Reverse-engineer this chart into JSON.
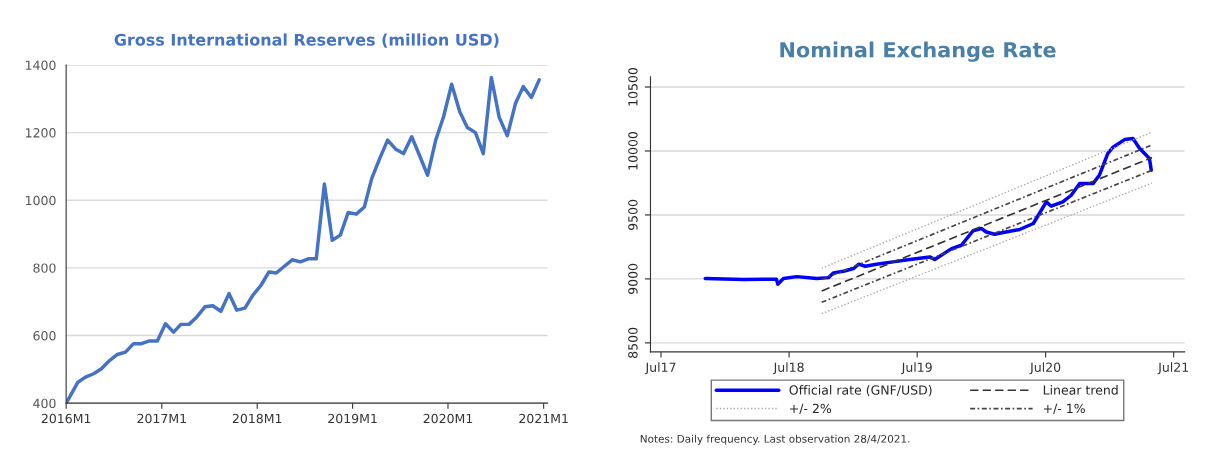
{
  "chart_data": [
    {
      "type": "line",
      "title": "Gross International Reserves (million USD)",
      "x": [
        "2016-01-01",
        "2016-02-15",
        "2016-03-15",
        "2016-04-15",
        "2016-05-15",
        "2016-06-15",
        "2016-07-15",
        "2016-08-15",
        "2016-09-15",
        "2016-10-15",
        "2016-11-15",
        "2016-12-15",
        "2017-01-15",
        "2017-02-15",
        "2017-03-15",
        "2017-04-15",
        "2017-05-15",
        "2017-06-15",
        "2017-07-15",
        "2017-08-15",
        "2017-09-15",
        "2017-10-15",
        "2017-11-15",
        "2017-12-15",
        "2018-01-15",
        "2018-02-15",
        "2018-03-15",
        "2018-04-15",
        "2018-05-15",
        "2018-06-15",
        "2018-07-15",
        "2018-08-15",
        "2018-09-15",
        "2018-10-15",
        "2018-11-15",
        "2018-12-15",
        "2019-01-15",
        "2019-02-15",
        "2019-03-15",
        "2019-04-15",
        "2019-05-15",
        "2019-06-15",
        "2019-07-15",
        "2019-08-15",
        "2019-09-15",
        "2019-10-15",
        "2019-11-15",
        "2019-12-15",
        "2020-01-15",
        "2020-02-15",
        "2020-03-15",
        "2020-04-15",
        "2020-05-15",
        "2020-06-15",
        "2020-07-15",
        "2020-08-15",
        "2020-09-15",
        "2020-10-15",
        "2020-11-15",
        "2020-12-15"
      ],
      "series": [
        {
          "color": "#4472c4",
          "values": [
            400,
            462,
            477,
            487,
            502,
            526,
            544,
            551,
            576,
            576,
            584,
            584,
            635,
            610,
            633,
            633,
            655,
            685,
            688,
            672,
            724,
            675,
            681,
            719,
            748,
            788,
            785,
            805,
            824,
            818,
            827,
            827,
            1048,
            882,
            897,
            964,
            959,
            980,
            1064,
            1124,
            1178,
            1151,
            1138,
            1188,
            1131,
            1074,
            1178,
            1247,
            1343,
            1262,
            1215,
            1200,
            1138,
            1363,
            1245,
            1191,
            1286,
            1336,
            1304,
            1356
          ]
        }
      ],
      "xlim": [
        "2016-01-01",
        "2021-01-16"
      ],
      "xticks": [
        {
          "value": "2016-01-01",
          "label": "2016M1"
        },
        {
          "value": "2017-01-01",
          "label": "2017M1"
        },
        {
          "value": "2018-01-01",
          "label": "2018M1"
        },
        {
          "value": "2019-01-01",
          "label": "2019M1"
        },
        {
          "value": "2020-01-01",
          "label": "2020M1"
        },
        {
          "value": "2021-01-01",
          "label": "2021M1"
        }
      ],
      "ylim": [
        400,
        1400
      ],
      "yticks": [
        400,
        600,
        800,
        1000,
        1200,
        1400
      ],
      "grid": "y",
      "legend": false
    },
    {
      "type": "line",
      "title": "Nominal Exchange Rate",
      "series": [
        {
          "name": "Official rate (GNF/USD)",
          "color": "#0000ff",
          "line_style": "solid",
          "x": [
            "2017-11-04",
            "2018-02-22",
            "2018-05-26",
            "2018-05-30",
            "2018-06-15",
            "2018-07-23",
            "2018-09-18",
            "2018-10-21",
            "2018-11-04",
            "2018-12-03",
            "2019-01-01",
            "2019-01-15",
            "2019-02-03",
            "2019-03-07",
            "2019-04-23",
            "2019-06-10",
            "2019-08-06",
            "2019-08-20",
            "2019-10-07",
            "2019-11-04",
            "2019-12-07",
            "2019-12-31",
            "2020-01-14",
            "2020-02-06",
            "2020-03-10",
            "2020-04-18",
            "2020-05-27",
            "2020-07-03",
            "2020-07-17",
            "2020-08-19",
            "2020-09-12",
            "2020-10-06",
            "2020-11-13",
            "2020-12-01",
            "2020-12-25",
            "2021-01-08",
            "2021-02-11",
            "2021-03-07",
            "2021-03-26",
            "2021-04-14",
            "2021-04-23",
            "2021-04-28"
          ],
          "values": [
            9003,
            8995,
            8998,
            8959,
            9003,
            9018,
            9003,
            9010,
            9047,
            9060,
            9081,
            9115,
            9099,
            9115,
            9133,
            9152,
            9172,
            9152,
            9237,
            9263,
            9375,
            9394,
            9367,
            9349,
            9367,
            9386,
            9433,
            9602,
            9568,
            9602,
            9654,
            9745,
            9745,
            9810,
            9980,
            10027,
            10089,
            10097,
            10019,
            9966,
            9941,
            9849
          ]
        },
        {
          "name": "Linear trend",
          "color": "#333333",
          "line_style": "dashed",
          "x": [
            "2018-10-02",
            "2021-04-30"
          ],
          "values": [
            8906,
            9948
          ]
        },
        {
          "name": "+/- 2%",
          "color": "#aaaaaa",
          "line_style": "dotted",
          "x": [
            "2018-10-02",
            "2021-04-30"
          ],
          "values": [
            9084,
            10147
          ]
        },
        {
          "color": "#aaaaaa",
          "line_style": "dotted",
          "x": [
            "2018-10-02",
            "2021-04-30"
          ],
          "values": [
            8728,
            9749
          ]
        },
        {
          "name": "+/- 1%",
          "color": "#444444",
          "line_style": "dashdot",
          "x": [
            "2018-10-02",
            "2021-04-30"
          ],
          "values": [
            8995,
            10047
          ]
        },
        {
          "color": "#444444",
          "line_style": "dashdot",
          "x": [
            "2018-10-02",
            "2021-04-30"
          ],
          "values": [
            8817,
            9849
          ]
        }
      ],
      "xlim": [
        "2017-06-01",
        "2021-08-01"
      ],
      "xticks": [
        {
          "value": "2017-07-01",
          "label": "Jul17"
        },
        {
          "value": "2018-07-01",
          "label": "Jul18"
        },
        {
          "value": "2019-07-01",
          "label": "Jul19"
        },
        {
          "value": "2020-07-01",
          "label": "Jul20"
        },
        {
          "value": "2021-07-01",
          "label": "Jul21"
        }
      ],
      "ylim": [
        8430,
        10580
      ],
      "yticks": [
        8500,
        9000,
        9500,
        10000,
        10500
      ],
      "grid": "y",
      "legend": "bottom",
      "annotations": [
        "Notes: Daily frequency. Last observation 28/4/2021."
      ]
    }
  ]
}
